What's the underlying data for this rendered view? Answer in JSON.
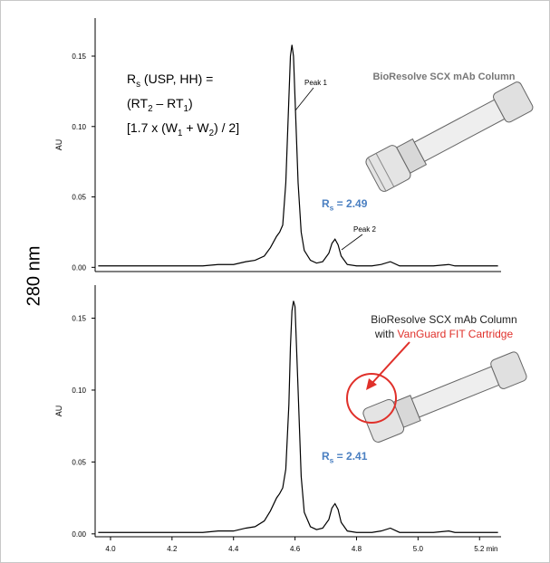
{
  "side_label": "280 nm",
  "chart_data": [
    {
      "type": "line",
      "ylabel": "AU",
      "x": [
        3.96,
        4.0,
        4.1,
        4.2,
        4.3,
        4.35,
        4.4,
        4.44,
        4.47,
        4.5,
        4.52,
        4.54,
        4.55,
        4.56,
        4.57,
        4.58,
        4.585,
        4.59,
        4.595,
        4.6,
        4.61,
        4.62,
        4.63,
        4.65,
        4.67,
        4.69,
        4.71,
        4.72,
        4.73,
        4.74,
        4.75,
        4.77,
        4.8,
        4.85,
        4.88,
        4.91,
        4.94,
        5.0,
        5.05,
        5.1,
        5.12,
        5.2,
        5.26
      ],
      "series": [
        {
          "color": "#000000",
          "values": [
            0.001,
            0.001,
            0.001,
            0.001,
            0.001,
            0.002,
            0.002,
            0.004,
            0.005,
            0.008,
            0.014,
            0.022,
            0.025,
            0.03,
            0.06,
            0.12,
            0.15,
            0.158,
            0.15,
            0.12,
            0.06,
            0.025,
            0.012,
            0.005,
            0.003,
            0.004,
            0.01,
            0.017,
            0.02,
            0.016,
            0.008,
            0.002,
            0.001,
            0.001,
            0.002,
            0.004,
            0.001,
            0.001,
            0.001,
            0.002,
            0.001,
            0.001,
            0.001
          ]
        }
      ],
      "xlim": [
        3.95,
        5.27
      ],
      "ylim": [
        -0.003,
        0.177
      ],
      "yticks": [
        {
          "value": 0,
          "label": "0.00"
        },
        0.05,
        {
          "value": 0.1,
          "label": "0.10"
        },
        0.15
      ],
      "formula": [
        [
          {
            "text": "R"
          },
          {
            "text": "s",
            "sub": true
          },
          {
            "text": " (USP, HH) ="
          }
        ],
        [
          {
            "text": "(RT"
          },
          {
            "text": "2",
            "sub": true
          },
          {
            "text": " – RT"
          },
          {
            "text": "1",
            "sub": true
          },
          {
            "text": ")"
          }
        ],
        [
          {
            "text": "[1.7 x (W"
          },
          {
            "text": "1",
            "sub": true
          },
          {
            "text": " + W"
          },
          {
            "text": "2",
            "sub": true
          },
          {
            "text": ") / 2]"
          }
        ]
      ],
      "peak_labels": [
        "Peak 1",
        "Peak 2"
      ],
      "resolution": [
        {
          "text": "R",
          "color": "#4a7fc1"
        },
        {
          "text": "s",
          "sub": true,
          "color": "#4a7fc1"
        },
        {
          "text": " = 2.49",
          "color": "#4a7fc1"
        }
      ],
      "image_caption": [
        [
          {
            "text": "BioResolve SCX mAb Column",
            "color": "#777777"
          }
        ]
      ]
    },
    {
      "type": "line",
      "ylabel": "AU",
      "x": [
        3.96,
        4.0,
        4.1,
        4.2,
        4.3,
        4.35,
        4.4,
        4.44,
        4.47,
        4.5,
        4.52,
        4.54,
        4.55,
        4.56,
        4.57,
        4.58,
        4.585,
        4.59,
        4.595,
        4.6,
        4.61,
        4.62,
        4.63,
        4.65,
        4.67,
        4.69,
        4.71,
        4.72,
        4.73,
        4.74,
        4.75,
        4.77,
        4.8,
        4.85,
        4.88,
        4.91,
        4.94,
        5.0,
        5.05,
        5.1,
        5.12,
        5.2,
        5.26
      ],
      "series": [
        {
          "color": "#000000",
          "values": [
            0.001,
            0.001,
            0.001,
            0.001,
            0.001,
            0.002,
            0.002,
            0.004,
            0.005,
            0.009,
            0.016,
            0.025,
            0.028,
            0.032,
            0.045,
            0.09,
            0.13,
            0.155,
            0.162,
            0.158,
            0.1,
            0.04,
            0.015,
            0.005,
            0.003,
            0.004,
            0.01,
            0.018,
            0.021,
            0.017,
            0.008,
            0.002,
            0.001,
            0.001,
            0.002,
            0.004,
            0.001,
            0.001,
            0.001,
            0.002,
            0.001,
            0.001,
            0.001
          ]
        }
      ],
      "xlim": [
        3.95,
        5.27
      ],
      "ylim": [
        -0.002,
        0.173
      ],
      "yticks": [
        {
          "value": 0,
          "label": "0.00"
        },
        0.05,
        {
          "value": 0.1,
          "label": "0.10"
        },
        0.15
      ],
      "xticks": [
        {
          "value": 4,
          "label": "4.0"
        },
        4.2,
        4.4,
        4.6,
        4.8,
        {
          "value": 5,
          "label": "5.0"
        },
        {
          "value": 5.2,
          "label": "5.2 min"
        }
      ],
      "resolution": [
        {
          "text": "R",
          "color": "#4a7fc1"
        },
        {
          "text": "s",
          "sub": true,
          "color": "#4a7fc1"
        },
        {
          "text": " = 2.41",
          "color": "#4a7fc1"
        }
      ],
      "image_caption": [
        [
          {
            "text": "BioResolve SCX mAb Column",
            "color": "#222222"
          }
        ],
        [
          {
            "text": "with ",
            "color": "#222222"
          },
          {
            "text": "VanGuard FIT Cartridge",
            "color": "#e0302a"
          }
        ]
      ]
    }
  ]
}
